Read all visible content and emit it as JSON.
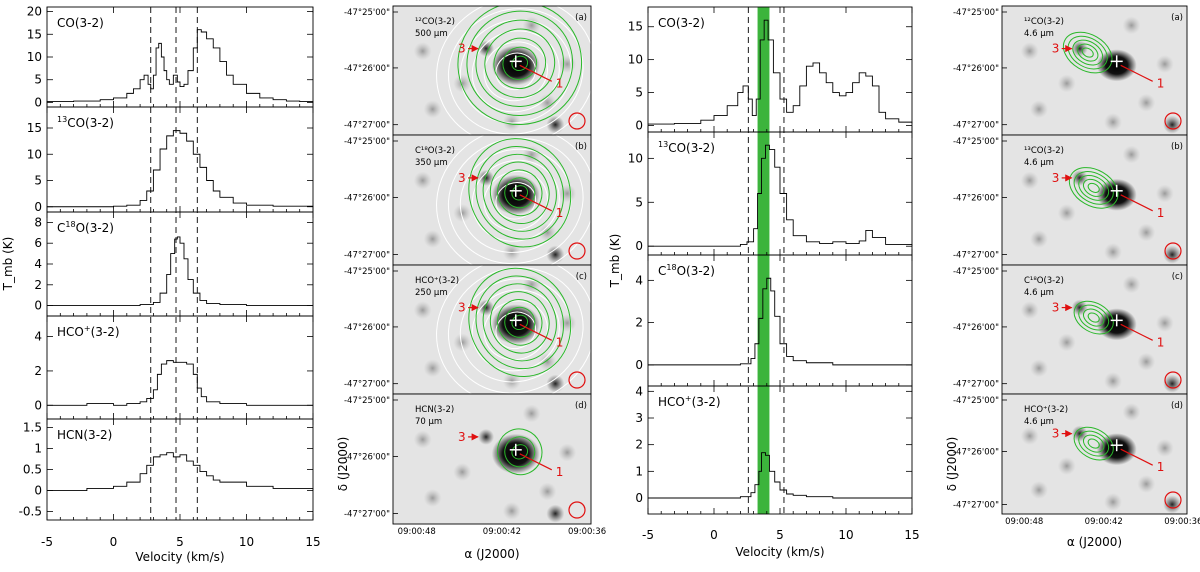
{
  "chart_data": [
    {
      "type": "line",
      "id": "spectra-left",
      "xlabel": "Velocity (km/s)",
      "ylabel": "T_mb (K)",
      "xlim": [
        -5,
        15
      ],
      "x_ticks": [
        "-5",
        "0",
        "5",
        "10",
        "15"
      ],
      "vlines": [
        2.8,
        4.7,
        6.3
      ],
      "panels": [
        {
          "label": "CO(3-2)",
          "ylim": [
            -1,
            21
          ],
          "y_ticks": [
            0,
            5,
            10,
            15,
            20
          ],
          "x": [
            -5,
            -3,
            -1,
            0,
            1,
            1.5,
            2,
            2.3,
            2.6,
            2.8,
            3,
            3.2,
            3.4,
            3.6,
            3.8,
            4,
            4.2,
            4.5,
            4.8,
            5,
            5.3,
            5.6,
            6,
            6.3,
            6.6,
            7,
            7.5,
            8,
            8.5,
            9,
            10,
            11,
            12,
            13,
            14,
            15
          ],
          "y": [
            0.2,
            0.3,
            0.6,
            1,
            2,
            3,
            5,
            6,
            4,
            3,
            6,
            12,
            13,
            10,
            7,
            5,
            4,
            6,
            4.5,
            3.5,
            4,
            7,
            12,
            16,
            15.5,
            14,
            12,
            9,
            6,
            4,
            2,
            1,
            0.6,
            0.3,
            0.2,
            0.2
          ]
        },
        {
          "label": "13CO(3-2)",
          "ylim": [
            -1,
            19
          ],
          "y_ticks": [
            0,
            5,
            10,
            15
          ],
          "x": [
            -5,
            -2,
            0,
            1,
            2,
            2.5,
            3,
            3.5,
            4,
            4.5,
            5,
            5.5,
            6,
            6.5,
            7,
            7.5,
            8,
            9,
            10,
            12,
            15
          ],
          "y": [
            0,
            0,
            0.1,
            0.3,
            1.2,
            3,
            7,
            11,
            13.5,
            14.5,
            14,
            12.5,
            10,
            7.5,
            5,
            3,
            1.8,
            0.7,
            0.3,
            0.1,
            0
          ]
        },
        {
          "label": "C18O(3-2)",
          "ylim": [
            -1,
            9
          ],
          "y_ticks": [
            0,
            2,
            4,
            6,
            8
          ],
          "x": [
            -5,
            -2,
            0,
            2,
            3,
            3.5,
            4,
            4.3,
            4.6,
            4.8,
            5,
            5.3,
            5.6,
            6,
            6.5,
            7,
            8,
            10,
            15
          ],
          "y": [
            0,
            0,
            0,
            0.1,
            0.3,
            1.2,
            3,
            5,
            6.4,
            6.6,
            6,
            4.5,
            2.5,
            1.2,
            0.5,
            0.2,
            0.1,
            0,
            0
          ]
        },
        {
          "label": "HCO+(3-2)",
          "ylim": [
            -0.8,
            5.2
          ],
          "y_ticks": [
            0,
            2,
            4
          ],
          "x": [
            -5,
            -2,
            0,
            1,
            2,
            2.5,
            3,
            3.3,
            3.6,
            4,
            4.5,
            5,
            5.5,
            6,
            6.3,
            6.6,
            7,
            8,
            10,
            15
          ],
          "y": [
            0,
            0.1,
            0,
            0.1,
            0.2,
            0.4,
            0.9,
            1.8,
            2.4,
            2.6,
            2.5,
            2.5,
            2.4,
            1.8,
            1,
            0.5,
            0.2,
            0.1,
            0,
            0
          ]
        },
        {
          "label": "HCN(3-2)",
          "ylim": [
            -0.7,
            1.7
          ],
          "y_ticks": [
            "-0.5",
            "0",
            "0.5",
            "1",
            "1.5"
          ],
          "x": [
            -5,
            -2,
            0,
            1,
            2,
            2.5,
            3,
            3.5,
            4,
            4.5,
            5,
            5.5,
            6,
            6.5,
            7,
            7.5,
            8,
            10,
            12,
            15
          ],
          "y": [
            0,
            0.05,
            0.1,
            0.2,
            0.4,
            0.6,
            0.8,
            0.85,
            0.9,
            0.8,
            0.85,
            0.7,
            0.6,
            0.45,
            0.35,
            0.25,
            0.2,
            0.1,
            0.05,
            0
          ]
        }
      ]
    },
    {
      "type": "image",
      "id": "maps-left",
      "xlabel": "α (J2000)",
      "ylabel": "δ (J2000)",
      "ra_ticks": [
        "09:00:48",
        "09:00:42",
        "09:00:36"
      ],
      "dec_ticks": [
        "-47°25'00\"",
        "-47°26'00\"",
        "-47°27'00\""
      ],
      "panels": [
        {
          "tag": "(a)",
          "line": "¹²CO(3-2)",
          "band": "500 μm"
        },
        {
          "tag": "(b)",
          "line": "C¹⁸O(3-2)",
          "band": "350 μm"
        },
        {
          "tag": "(c)",
          "line": "HCO⁺(3-2)",
          "band": "250 μm"
        },
        {
          "tag": "(d)",
          "line": "HCN(3-2)",
          "band": "70 μm"
        }
      ],
      "source_labels": [
        "1",
        "3"
      ]
    },
    {
      "type": "line",
      "id": "spectra-right",
      "xlabel": "Velocity (km/s)",
      "ylabel": "T_mb (K)",
      "xlim": [
        -5,
        15
      ],
      "x_ticks": [
        "-5",
        "0",
        "5",
        "10",
        "15"
      ],
      "vlines": [
        2.6,
        5.3
      ],
      "shaded_band": [
        3.3,
        4.2
      ],
      "shaded_color": "#3cb43c",
      "panels": [
        {
          "label": "CO(3-2)",
          "ylim": [
            -1,
            18
          ],
          "y_ticks": [
            0,
            5,
            10,
            15
          ],
          "x": [
            -5,
            -3,
            -1,
            0,
            1,
            1.8,
            2.2,
            2.6,
            2.9,
            3.2,
            3.5,
            3.8,
            4.1,
            4.5,
            5,
            5.5,
            6,
            6.5,
            7,
            7.5,
            8,
            8.5,
            9,
            9.5,
            10,
            10.5,
            11,
            11.5,
            12,
            12.5,
            13,
            14,
            15
          ],
          "y": [
            0.2,
            0.3,
            0.8,
            1.5,
            3,
            5,
            6,
            4,
            1.5,
            4,
            13,
            16,
            13,
            8,
            4,
            2,
            3,
            6,
            9,
            9.5,
            8,
            6.5,
            5,
            4.5,
            5,
            6.5,
            8,
            7.5,
            6,
            2,
            1,
            0.5,
            0.3
          ]
        },
        {
          "label": "13CO(3-2)",
          "ylim": [
            -1,
            13
          ],
          "y_ticks": [
            0,
            5,
            10
          ],
          "x": [
            -5,
            0,
            2,
            2.5,
            3,
            3.3,
            3.6,
            3.9,
            4.2,
            4.6,
            5,
            5.5,
            6,
            7,
            8,
            9,
            10,
            11,
            11.5,
            12,
            13,
            15
          ],
          "y": [
            0,
            0,
            0.2,
            0.5,
            2,
            6,
            10,
            11.5,
            11,
            9,
            6,
            3,
            1.2,
            0.5,
            0.3,
            0.5,
            0.3,
            0.6,
            1.8,
            1,
            0.2,
            0
          ]
        },
        {
          "label": "C18O(3-2)",
          "ylim": [
            -1,
            5.2
          ],
          "y_ticks": [
            0,
            2,
            4
          ],
          "x": [
            -5,
            0,
            2,
            2.8,
            3.1,
            3.4,
            3.7,
            4,
            4.3,
            4.6,
            5,
            5.5,
            6,
            7,
            9,
            11,
            13,
            15
          ],
          "y": [
            0,
            0,
            0.05,
            0.3,
            1,
            2.2,
            3.6,
            4.1,
            3.5,
            2.3,
            1,
            0.4,
            0.2,
            0.1,
            0,
            0,
            0,
            0
          ]
        },
        {
          "label": "HCO+(3-2)",
          "ylim": [
            -0.6,
            4.2
          ],
          "y_ticks": [
            0,
            1,
            2,
            3,
            4
          ],
          "x": [
            -5,
            0,
            2,
            2.8,
            3.1,
            3.4,
            3.6,
            3.9,
            4.2,
            4.6,
            5,
            5.5,
            6,
            7,
            9,
            11,
            13,
            15
          ],
          "y": [
            0,
            0,
            0.05,
            0.2,
            0.5,
            1,
            1.7,
            1.6,
            1,
            0.6,
            0.3,
            0.15,
            0.1,
            0.05,
            0,
            0,
            0,
            0
          ]
        }
      ]
    },
    {
      "type": "image",
      "id": "maps-right",
      "xlabel": "α (J2000)",
      "ylabel": "δ (J2000)",
      "ra_ticks": [
        "09:00:48",
        "09:00:42",
        "09:00:36"
      ],
      "dec_ticks": [
        "-47°25'00\"",
        "-47°26'00\"",
        "-47°27'00\""
      ],
      "panels": [
        {
          "tag": "(a)",
          "line": "¹²CO(3-2)",
          "band": "4.6 μm"
        },
        {
          "tag": "(b)",
          "line": "¹³CO(3-2)",
          "band": "4.6 μm"
        },
        {
          "tag": "(c)",
          "line": "C¹⁸O(3-2)",
          "band": "4.6 μm"
        },
        {
          "tag": "(d)",
          "line": "HCO⁺(3-2)",
          "band": "4.6 μm"
        }
      ],
      "source_labels": [
        "1",
        "3"
      ]
    }
  ],
  "colors": {
    "contour_green": "#2ab82a",
    "contour_white": "#ffffff",
    "marker_red": "#e01010",
    "band_green": "#3cb43c"
  }
}
